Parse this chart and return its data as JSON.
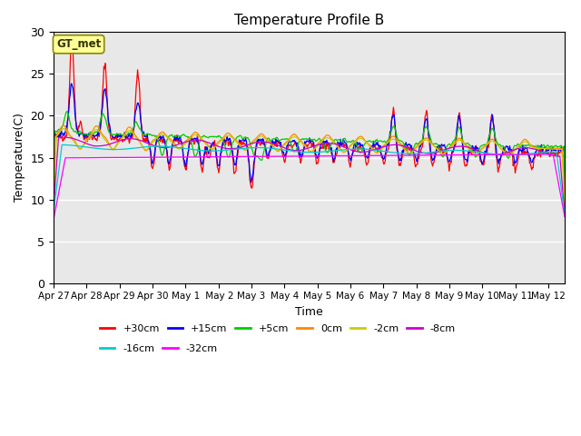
{
  "title": "Temperature Profile B",
  "xlabel": "Time",
  "ylabel": "Temperature(C)",
  "ylim": [
    0,
    30
  ],
  "xlim_days": 15.5,
  "annotation": "GT_met",
  "bg_color": "#e8e8e8",
  "series": [
    {
      "label": "+30cm",
      "color": "#ff0000"
    },
    {
      "label": "+15cm",
      "color": "#0000ff"
    },
    {
      "label": "+5cm",
      "color": "#00cc00"
    },
    {
      "label": "0cm",
      "color": "#ff8800"
    },
    {
      "label": "-2cm",
      "color": "#cccc00"
    },
    {
      "label": "-8cm",
      "color": "#cc00cc"
    },
    {
      "label": "-16cm",
      "color": "#00cccc"
    },
    {
      "label": "-32cm",
      "color": "#ff00ff"
    }
  ],
  "yticks": [
    0,
    5,
    10,
    15,
    20,
    25,
    30
  ],
  "xtick_labels": [
    "Apr 27",
    "Apr 28",
    "Apr 29",
    "Apr 30",
    "May 1",
    " May 2",
    "May 3",
    "May 4",
    "May 5",
    "May 6",
    "May 7",
    "May 8",
    "May 9",
    "May 10",
    "May 11",
    "May 12"
  ],
  "legend_ncol1": 6,
  "legend_ncol2": 2
}
